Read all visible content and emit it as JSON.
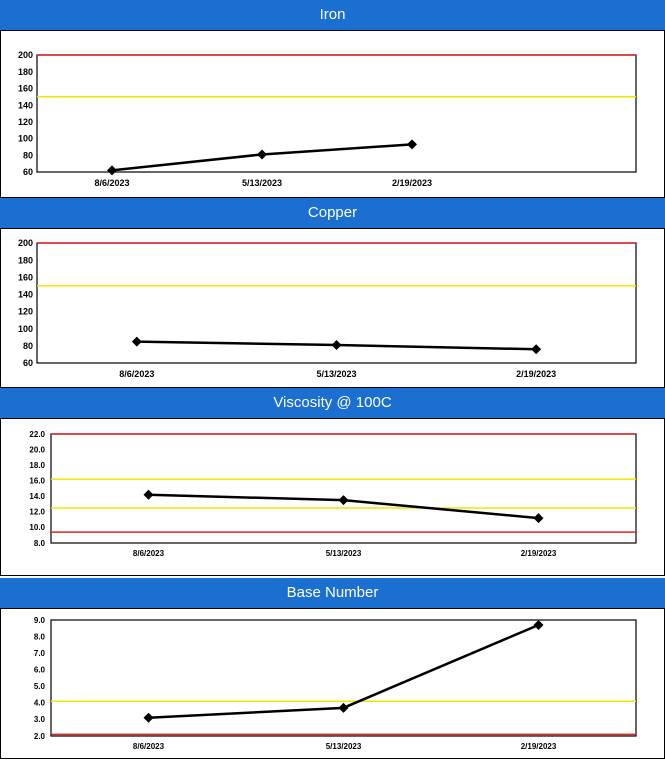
{
  "chart_data": [
    {
      "type": "line",
      "title": "Iron",
      "categories": [
        "8/6/2023",
        "5/13/2023",
        "2/19/2023"
      ],
      "yticks": [
        "200",
        "180",
        "160",
        "140",
        "120",
        "100",
        "80",
        "60"
      ],
      "ylim": [
        60,
        200
      ],
      "values": [
        62,
        81,
        93
      ],
      "limits": [
        {
          "value": 200,
          "color": "#e02020"
        },
        {
          "value": 150,
          "color": "#f2e600"
        }
      ],
      "series_color": "#000000"
    },
    {
      "type": "line",
      "title": "Copper",
      "categories": [
        "8/6/2023",
        "5/13/2023",
        "2/19/2023"
      ],
      "yticks": [
        "200",
        "180",
        "160",
        "140",
        "120",
        "100",
        "80",
        "60"
      ],
      "ylim": [
        60,
        200
      ],
      "values": [
        85,
        81,
        76
      ],
      "limits": [
        {
          "value": 200,
          "color": "#e02020"
        },
        {
          "value": 150,
          "color": "#f2e600"
        }
      ],
      "series_color": "#000000"
    },
    {
      "type": "line",
      "title": "Viscosity @ 100C",
      "categories": [
        "8/6/2023",
        "5/13/2023",
        "2/19/2023"
      ],
      "yticks": [
        "22.0",
        "20.0",
        "18.0",
        "16.0",
        "14.0",
        "12.0",
        "10.0",
        "8.0"
      ],
      "ylim": [
        8,
        22
      ],
      "values": [
        14.2,
        13.5,
        11.2
      ],
      "limits": [
        {
          "value": 22.0,
          "color": "#e02020"
        },
        {
          "value": 16.2,
          "color": "#f2e600"
        },
        {
          "value": 12.5,
          "color": "#f2e600"
        },
        {
          "value": 9.4,
          "color": "#e02020"
        }
      ],
      "series_color": "#000000"
    },
    {
      "type": "line",
      "title": "Base Number",
      "categories": [
        "8/6/2023",
        "5/13/2023",
        "2/19/2023"
      ],
      "yticks": [
        "9.0",
        "8.0",
        "7.0",
        "6.0",
        "5.0",
        "4.0",
        "3.0",
        "2.0"
      ],
      "ylim": [
        2,
        9
      ],
      "values": [
        3.1,
        3.7,
        8.7
      ],
      "limits": [
        {
          "value": 4.1,
          "color": "#f2e600"
        },
        {
          "value": 2.1,
          "color": "#e02020"
        }
      ],
      "series_color": "#000000"
    }
  ]
}
